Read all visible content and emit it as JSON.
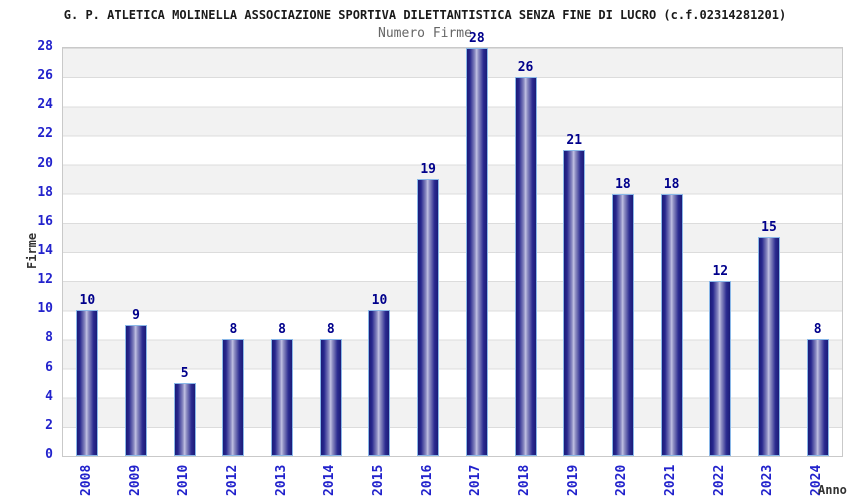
{
  "chart_data": {
    "type": "bar",
    "title": "G. P. ATLETICA MOLINELLA ASSOCIAZIONE SPORTIVA DILETTANTISTICA SENZA FINE DI LUCRO (c.f.02314281201)",
    "subtitle": "Numero Firme",
    "xlabel": "Anno",
    "ylabel": "Firme",
    "categories": [
      "2008",
      "2009",
      "2010",
      "2012",
      "2013",
      "2014",
      "2015",
      "2016",
      "2017",
      "2018",
      "2019",
      "2020",
      "2021",
      "2022",
      "2023",
      "2024"
    ],
    "values": [
      10,
      9,
      5,
      8,
      8,
      8,
      10,
      19,
      28,
      26,
      21,
      18,
      18,
      12,
      15,
      8
    ],
    "ylim": [
      0,
      28
    ],
    "ytick_step": 2,
    "grid": "horizontal-bands-alternating",
    "legend_position": "none",
    "colors": {
      "bar_dark": "#1b1b78",
      "bar_mid": "#8d8dc3",
      "bar_light": "#c2c2e4",
      "bar_outline": "#8ab8e8",
      "value_label": "#00008b",
      "axis_tick_label": "#2222cc",
      "axis_title": "#333333",
      "title": "#1a1a1a",
      "subtitle": "#666666",
      "band_gray": "#f2f2f2",
      "band_white": "#ffffff",
      "grid_line": "#dcdcdc",
      "plot_border": "#c9c9c9"
    }
  }
}
